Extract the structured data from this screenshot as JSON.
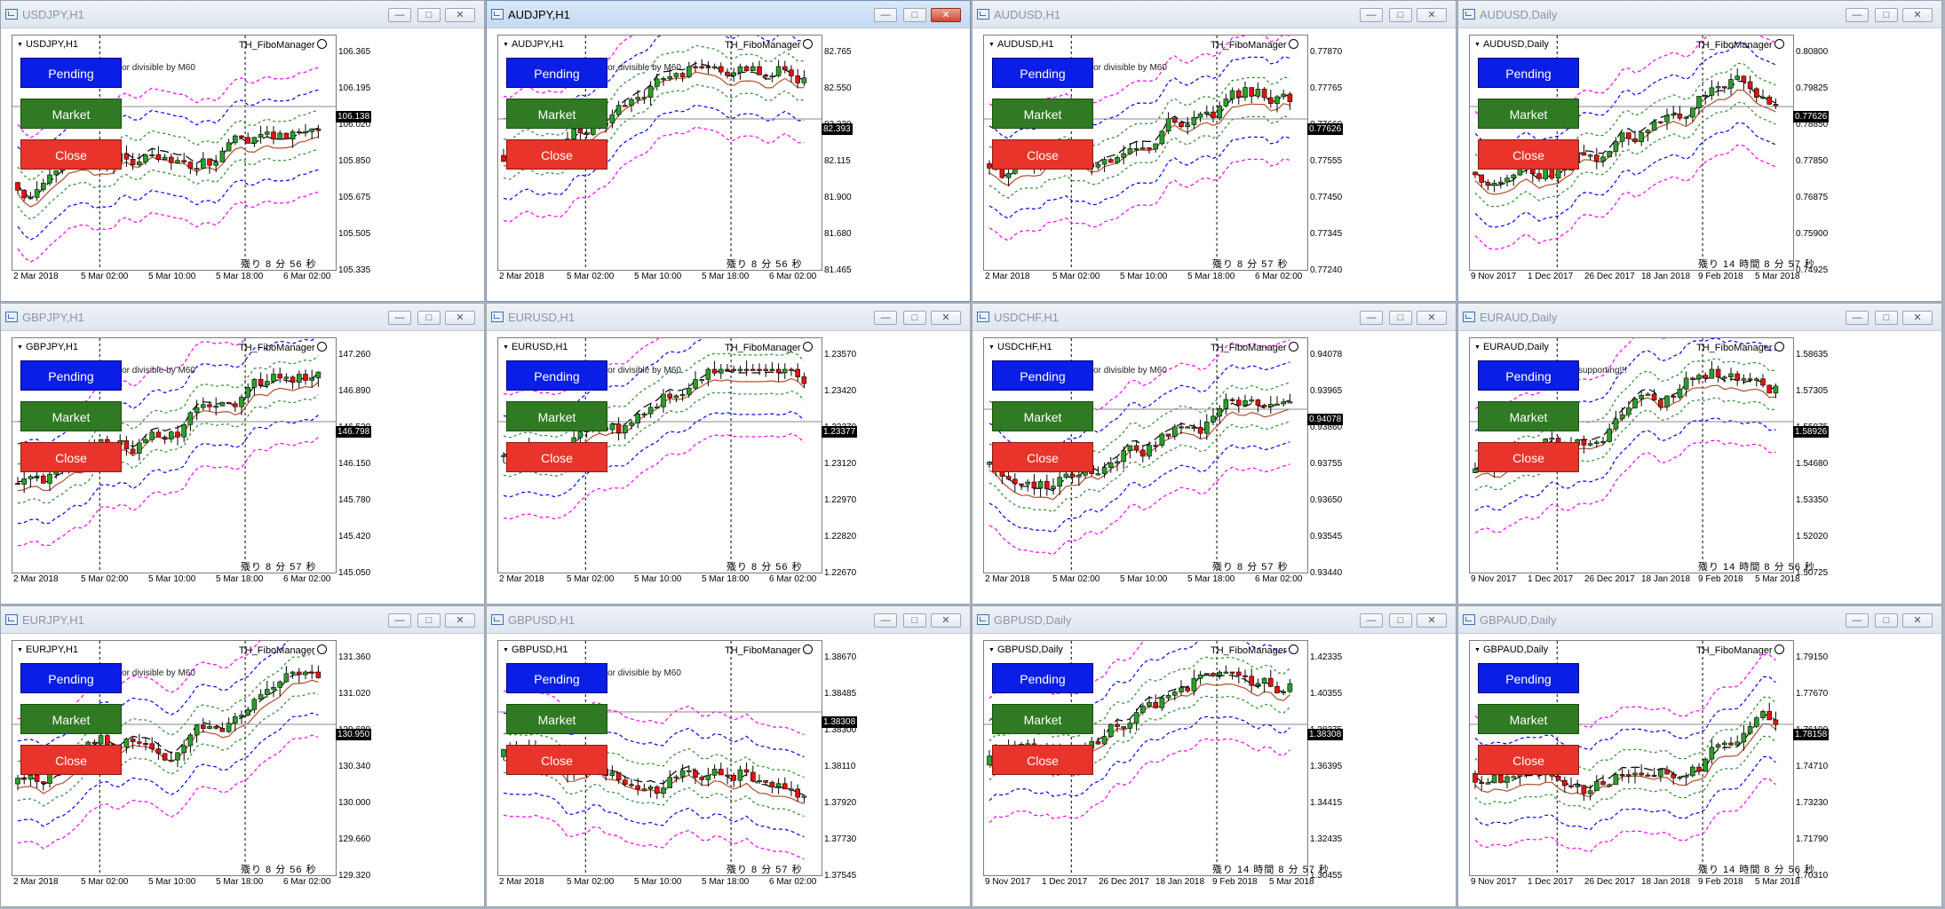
{
  "common": {
    "ea_name": "TH_FiboManager",
    "buttons": {
      "pending": "Pending",
      "market": "Market",
      "close": "Close"
    },
    "colors": {
      "pending": "#0a1ee6",
      "market": "#2f7a22",
      "close": "#e8342a",
      "up": "#2aa02a",
      "down": "#e3140c",
      "ma_slow": "#000000",
      "ma_fast": "#b0502a",
      "band_outer": "#ff00ff",
      "band_mid": "#0000ff",
      "band_inner": "#2a8a2a"
    },
    "icons": [
      "app-window-icon",
      "minimize-icon",
      "maximize-icon",
      "close-icon",
      "dropdown-arrow-icon",
      "smiley-icon"
    ]
  },
  "windows": [
    {
      "title": "USDJPY,H1",
      "symbol": "USDJPY,H1",
      "message": "Timeframe must be more or divisible by M60",
      "timer": "残り 8 分 56 秒",
      "y_ticks": [
        "106.365",
        "106.195",
        "106.020",
        "105.850",
        "105.675",
        "105.505",
        "105.335"
      ],
      "current_price": "106.138",
      "x_ticks": [
        "2 Mar 2018",
        "5 Mar 02:00",
        "5 Mar 10:00",
        "5 Mar 18:00",
        "6 Mar 02:00"
      ]
    },
    {
      "title": "AUDJPY,H1",
      "symbol": "AUDJPY,H1",
      "message": "Timeframe must be more or divisible by M60",
      "timer": "残り 8 分 56 秒",
      "y_ticks": [
        "82.765",
        "82.550",
        "82.330",
        "82.115",
        "81.900",
        "81.680",
        "81.465"
      ],
      "current_price": "82.393",
      "x_ticks": [
        "2 Mar 2018",
        "5 Mar 02:00",
        "5 Mar 10:00",
        "5 Mar 18:00",
        "6 Mar 02:00"
      ]
    },
    {
      "title": "AUDUSD,H1",
      "symbol": "AUDUSD,H1",
      "message": "Timeframe must be more or divisible by M60",
      "timer": "残り 8 分 57 秒",
      "y_ticks": [
        "0.77870",
        "0.77765",
        "0.77660",
        "0.77555",
        "0.77450",
        "0.77345",
        "0.77240"
      ],
      "current_price": "0.77626",
      "x_ticks": [
        "2 Mar 2018",
        "5 Mar 02:00",
        "5 Mar 10:00",
        "5 Mar 18:00",
        "6 Mar 02:00"
      ]
    },
    {
      "title": "AUDUSD,Daily",
      "symbol": "AUDUSD,Daily",
      "message": "",
      "timer": "残り 14 時間 8 分 57 秒",
      "y_ticks": [
        "0.80800",
        "0.79825",
        "0.78850",
        "0.77850",
        "0.76875",
        "0.75900",
        "0.74925"
      ],
      "current_price": "0.77626",
      "x_ticks": [
        "9 Nov 2017",
        "1 Dec 2017",
        "26 Dec 2017",
        "18 Jan 2018",
        "9 Feb 2018",
        "5 Mar 2018"
      ]
    },
    {
      "title": "GBPJPY,H1",
      "symbol": "GBPJPY,H1",
      "message": "Timeframe must be more or divisible by M60",
      "timer": "残り 8 分 57 秒",
      "y_ticks": [
        "147.260",
        "146.890",
        "146.520",
        "146.150",
        "145.780",
        "145.420",
        "145.050"
      ],
      "current_price": "146.798",
      "x_ticks": [
        "2 Mar 2018",
        "5 Mar 02:00",
        "5 Mar 10:00",
        "5 Mar 18:00",
        "6 Mar 02:00"
      ]
    },
    {
      "title": "EURUSD,H1",
      "symbol": "EURUSD,H1",
      "message": "Timeframe must be more or divisible by M60",
      "timer": "残り 8 分 56 秒",
      "y_ticks": [
        "1.23570",
        "1.23420",
        "1.23270",
        "1.23120",
        "1.22970",
        "1.22820",
        "1.22670"
      ],
      "current_price": "1.23377",
      "x_ticks": [
        "2 Mar 2018",
        "5 Mar 02:00",
        "5 Mar 10:00",
        "5 Mar 18:00",
        "6 Mar 02:00"
      ]
    },
    {
      "title": "USDCHF,H1",
      "symbol": "USDCHF,H1",
      "message": "Timeframe must be more or divisible by M60",
      "timer": "残り 8 分 57 秒",
      "y_ticks": [
        "0.94078",
        "0.93965",
        "0.93860",
        "0.93755",
        "0.93650",
        "0.93545",
        "0.93440"
      ],
      "current_price": "0.94078",
      "x_ticks": [
        "2 Mar 2018",
        "5 Mar 02:00",
        "5 Mar 10:00",
        "5 Mar 18:00",
        "6 Mar 02:00"
      ]
    },
    {
      "title": "EURAUD,Daily",
      "symbol": "EURAUD,Daily",
      "message": "Period of this chart is not supporting!!!",
      "timer": "残り 14 時間 8 分 56 秒",
      "y_ticks": [
        "1.58635",
        "1.57305",
        "1.55975",
        "1.54680",
        "1.53350",
        "1.52020",
        "1.50725"
      ],
      "current_price": "1.58926",
      "x_ticks": [
        "9 Nov 2017",
        "1 Dec 2017",
        "26 Dec 2017",
        "18 Jan 2018",
        "9 Feb 2018",
        "5 Mar 2018"
      ]
    },
    {
      "title": "EURJPY,H1",
      "symbol": "EURJPY,H1",
      "message": "Timeframe must be more or divisible by M60",
      "timer": "残り 8 分 56 秒",
      "y_ticks": [
        "131.360",
        "131.020",
        "130.680",
        "130.340",
        "130.000",
        "129.660",
        "129.320"
      ],
      "current_price": "130.950",
      "x_ticks": [
        "2 Mar 2018",
        "5 Mar 02:00",
        "5 Mar 10:00",
        "5 Mar 18:00",
        "6 Mar 02:00"
      ]
    },
    {
      "title": "GBPUSD,H1",
      "symbol": "GBPUSD,H1",
      "message": "Timeframe must be more or divisible by M60",
      "timer": "残り 8 分 57 秒",
      "y_ticks": [
        "1.38670",
        "1.38485",
        "1.38300",
        "1.38110",
        "1.37920",
        "1.37730",
        "1.37545"
      ],
      "current_price": "1.38308",
      "x_ticks": [
        "2 Mar 2018",
        "5 Mar 02:00",
        "5 Mar 10:00",
        "5 Mar 18:00",
        "6 Mar 02:00"
      ]
    },
    {
      "title": "GBPUSD,Daily",
      "symbol": "GBPUSD,Daily",
      "message": "",
      "timer": "残り 14 時間 8 分 57 秒",
      "y_ticks": [
        "1.42335",
        "1.40355",
        "1.38375",
        "1.36395",
        "1.34415",
        "1.32435",
        "1.30455"
      ],
      "current_price": "1.38308",
      "x_ticks": [
        "9 Nov 2017",
        "1 Dec 2017",
        "26 Dec 2017",
        "18 Jan 2018",
        "9 Feb 2018",
        "5 Mar 2018"
      ]
    },
    {
      "title": "GBPAUD,Daily",
      "symbol": "GBPAUD,Daily",
      "message": "",
      "timer": "残り 14 時間 8 分 56 秒",
      "y_ticks": [
        "1.79150",
        "1.77670",
        "1.76190",
        "1.74710",
        "1.73230",
        "1.71790",
        "1.70310"
      ],
      "current_price": "1.78158",
      "x_ticks": [
        "9 Nov 2017",
        "1 Dec 2017",
        "26 Dec 2017",
        "18 Jan 2018",
        "9 Feb 2018",
        "5 Mar 2018"
      ]
    }
  ]
}
